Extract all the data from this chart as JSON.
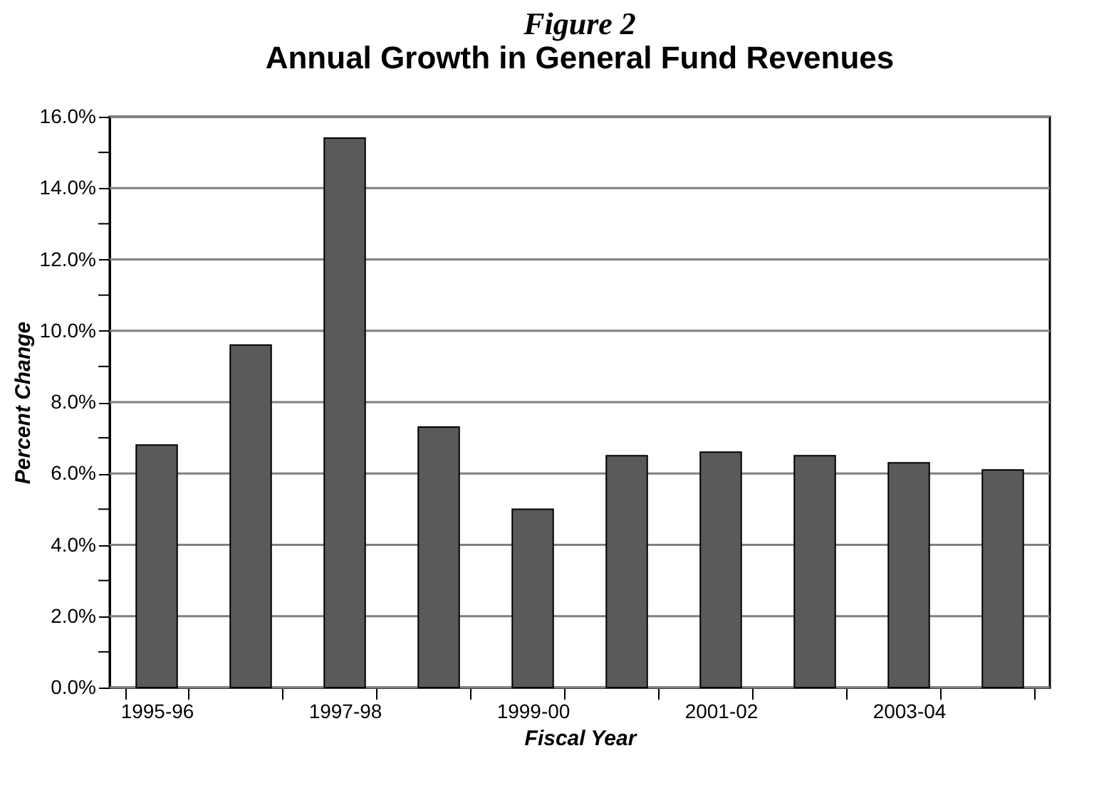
{
  "chart_data": {
    "type": "bar",
    "title": "Figure 2",
    "subtitle": "Annual Growth in General Fund Revenues",
    "xlabel": "Fiscal Year",
    "ylabel": "Percent Change",
    "categories": [
      "1995-96",
      null,
      "1997-98",
      null,
      "1999-00",
      null,
      "2001-02",
      null,
      "2003-04",
      null
    ],
    "values": [
      6.8,
      9.6,
      15.4,
      7.3,
      5.0,
      6.5,
      6.6,
      6.5,
      6.3,
      6.1
    ],
    "color": "#5a5a5a",
    "ylim": [
      0,
      16
    ],
    "yticks": [
      {
        "value": 0,
        "label": "0.0%"
      },
      {
        "value": 1,
        "label": null
      },
      {
        "value": 2,
        "label": "2.0%"
      },
      {
        "value": 3,
        "label": null
      },
      {
        "value": 4,
        "label": "4.0%"
      },
      {
        "value": 5,
        "label": null
      },
      {
        "value": 6,
        "label": "6.0%"
      },
      {
        "value": 7,
        "label": null
      },
      {
        "value": 8,
        "label": "8.0%"
      },
      {
        "value": 9,
        "label": null
      },
      {
        "value": 10,
        "label": "10.0%"
      },
      {
        "value": 11,
        "label": null
      },
      {
        "value": 12,
        "label": "12.0%"
      },
      {
        "value": 13,
        "label": null
      },
      {
        "value": 14,
        "label": "14.0%"
      },
      {
        "value": 15,
        "label": null
      },
      {
        "value": 16,
        "label": "16.0%"
      }
    ],
    "grid": "y"
  }
}
